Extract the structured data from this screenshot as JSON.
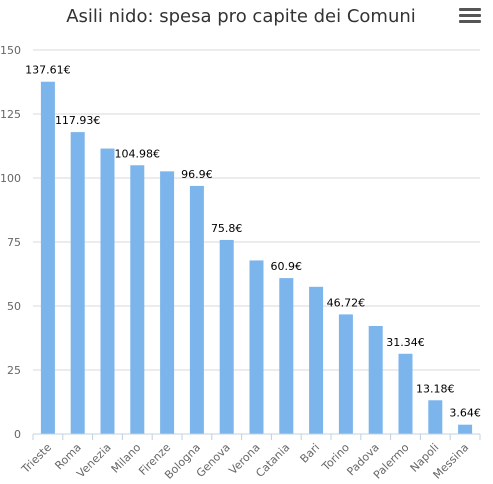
{
  "header": {
    "title": "Asili nido: spesa pro capite dei Comuni",
    "menu_icon": "hamburger-menu-icon"
  },
  "colors": {
    "bar": "#7cb5ec",
    "grid": "#d8d8d8",
    "axis": "#c0d0e0"
  },
  "chart_data": {
    "type": "bar",
    "title": "Asili nido: spesa pro capite dei Comuni",
    "xlabel": "",
    "ylabel": "",
    "ylim": [
      0,
      150
    ],
    "yticks": [
      0,
      25,
      50,
      75,
      100,
      125,
      150
    ],
    "grid": true,
    "categories": [
      "Trieste",
      "Roma",
      "Venezia",
      "Milano",
      "Firenze",
      "Bologna",
      "Genova",
      "Verona",
      "Catania",
      "Bari",
      "Torino",
      "Padova",
      "Palermo",
      "Napoli",
      "Messina"
    ],
    "values": [
      137.61,
      117.93,
      111.5,
      104.98,
      102.6,
      96.9,
      75.8,
      67.8,
      60.9,
      57.5,
      46.72,
      42.2,
      31.34,
      13.18,
      3.64
    ],
    "data_labels": [
      "137.61€",
      "117.93€",
      null,
      "104.98€",
      null,
      "96.9€",
      "75.8€",
      null,
      "60.9€",
      null,
      "46.72€",
      null,
      "31.34€",
      "13.18€",
      "3.64€"
    ]
  }
}
